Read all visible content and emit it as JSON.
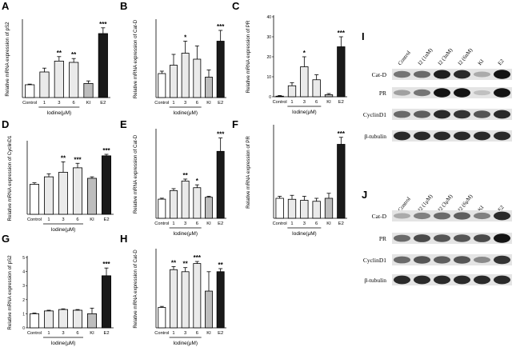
{
  "figure": {
    "colors": {
      "white_bar": "#ffffff",
      "light_bar": "#eaeaea",
      "gray_bar": "#bdbdbd",
      "dark_bar": "#1a1a1a",
      "axis": "#000000"
    }
  },
  "chart_data": [
    {
      "panel": "A",
      "type": "bar",
      "ylabel": "Relative mRNA expression of pS2",
      "xlabel": "Iodine(μM)",
      "categories": [
        "Control",
        "1",
        "3",
        "6",
        "KI",
        "E2"
      ],
      "values": [
        1.0,
        2.0,
        2.85,
        2.75,
        1.1,
        5.0
      ],
      "errors": [
        0.05,
        0.3,
        0.35,
        0.3,
        0.2,
        0.45
      ],
      "sig": [
        "",
        "",
        "**",
        "**",
        "",
        "***"
      ],
      "ylim": [
        0,
        6
      ],
      "ticks": [],
      "fills": [
        "white",
        "light",
        "light",
        "light",
        "gray",
        "dark"
      ]
    },
    {
      "panel": "B",
      "type": "bar",
      "ylabel": "Relative mRNA expression of Cat-D",
      "xlabel": "Iodine(μM)",
      "categories": [
        "Control",
        "1",
        "3",
        "6",
        "KI",
        "E2"
      ],
      "values": [
        1.0,
        1.35,
        1.85,
        1.6,
        0.85,
        2.35
      ],
      "errors": [
        0.1,
        0.45,
        0.5,
        0.55,
        0.3,
        0.45
      ],
      "sig": [
        "",
        "",
        "*",
        "",
        "",
        "***"
      ],
      "ylim": [
        0,
        3.2
      ],
      "ticks": [],
      "fills": [
        "white",
        "light",
        "light",
        "light",
        "gray",
        "dark"
      ]
    },
    {
      "panel": "C",
      "type": "bar",
      "ylabel": "Relative mRNA expression of PR",
      "xlabel": "Iodine(μM)",
      "categories": [
        "Control",
        "1",
        "3",
        "6",
        "KI",
        "E2"
      ],
      "values": [
        0.3,
        5.5,
        15.0,
        8.5,
        1.0,
        25.0
      ],
      "errors": [
        0.3,
        1.5,
        5.0,
        2.5,
        0.6,
        5.0
      ],
      "sig": [
        "",
        "",
        "*",
        "",
        "",
        "***"
      ],
      "ylim": [
        0,
        40
      ],
      "ticks": [
        "0",
        "10",
        "20",
        "30",
        "40"
      ],
      "fills": [
        "white",
        "light",
        "light",
        "light",
        "gray",
        "dark"
      ]
    },
    {
      "panel": "D",
      "type": "bar",
      "ylabel": "Relative mRNA expression of CyclinD1",
      "xlabel": "Iodine(μM)",
      "categories": [
        "Control",
        "1",
        "3",
        "6",
        "KI",
        "E2"
      ],
      "values": [
        1.0,
        1.25,
        1.4,
        1.55,
        1.2,
        1.95
      ],
      "errors": [
        0.05,
        0.1,
        0.35,
        0.15,
        0.05,
        0.05
      ],
      "sig": [
        "",
        "",
        "**",
        "***",
        "",
        "***"
      ],
      "ylim": [
        0,
        2.4
      ],
      "ticks": [],
      "fills": [
        "white",
        "light",
        "light",
        "light",
        "gray",
        "dark"
      ]
    },
    {
      "panel": "E",
      "type": "bar",
      "ylabel": "Relative mRNA expression of Cat-D",
      "xlabel": "Iodine(μM)",
      "categories": [
        "Control",
        "1",
        "3",
        "6",
        "KI",
        "E2"
      ],
      "values": [
        1.0,
        1.45,
        1.95,
        1.6,
        1.1,
        3.5
      ],
      "errors": [
        0.05,
        0.1,
        0.1,
        0.15,
        0.05,
        0.7
      ],
      "sig": [
        "",
        "",
        "**",
        "*",
        "",
        "***"
      ],
      "ylim": [
        0,
        4.6
      ],
      "ticks": [],
      "fills": [
        "white",
        "light",
        "light",
        "light",
        "gray",
        "dark"
      ]
    },
    {
      "panel": "F",
      "type": "bar",
      "ylabel": "Relative mRNA expression of PR",
      "xlabel": "Iodine(μM)",
      "categories": [
        "Control",
        "1",
        "3",
        "6",
        "KI",
        "E2"
      ],
      "values": [
        1.0,
        0.95,
        0.9,
        0.85,
        1.0,
        3.7
      ],
      "errors": [
        0.1,
        0.2,
        0.2,
        0.15,
        0.25,
        0.35
      ],
      "sig": [
        "",
        "",
        "",
        "",
        "",
        "***"
      ],
      "ylim": [
        0,
        4.6
      ],
      "ticks": [],
      "fills": [
        "white",
        "light",
        "light",
        "light",
        "gray",
        "dark"
      ]
    },
    {
      "panel": "G",
      "type": "bar",
      "ylabel": "Relative mRNA expression of pS2",
      "xlabel": "Iodine(μM)",
      "categories": [
        "Control",
        "1",
        "3",
        "6",
        "KI",
        "E2"
      ],
      "values": [
        1.0,
        1.2,
        1.3,
        1.25,
        1.0,
        3.7
      ],
      "errors": [
        0.05,
        0.05,
        0.05,
        0.05,
        0.4,
        0.55
      ],
      "sig": [
        "",
        "",
        "",
        "",
        "",
        "***"
      ],
      "ylim": [
        0,
        5
      ],
      "ticks": [
        "0",
        "1",
        "2",
        "3",
        "4",
        "5"
      ],
      "fills": [
        "white",
        "light",
        "light",
        "light",
        "gray",
        "dark"
      ]
    },
    {
      "panel": "H",
      "type": "bar",
      "ylabel": "Relative mRNA expression of Cat-D",
      "xlabel": "Iodine(μM)",
      "categories": [
        "Control",
        "1",
        "3",
        "6",
        "KI",
        "E2"
      ],
      "values": [
        1.0,
        2.85,
        2.75,
        3.15,
        1.8,
        2.75
      ],
      "errors": [
        0.05,
        0.15,
        0.2,
        0.1,
        0.95,
        0.15
      ],
      "sig": [
        "",
        "**",
        "**",
        "***",
        "",
        "**"
      ],
      "ylim": [
        0,
        3.8
      ],
      "ticks": [],
      "fills": [
        "white",
        "light",
        "light",
        "light",
        "gray",
        "dark"
      ]
    }
  ],
  "blots": [
    {
      "panel": "I",
      "lanes": [
        "Control",
        "I2 (1nM)",
        "I2 (3nM)",
        "I2 (6nM)",
        "KI",
        "E2"
      ],
      "rows": [
        {
          "label": "Cat-D",
          "intensity": [
            0.55,
            0.6,
            0.95,
            0.9,
            0.3,
            1.0
          ]
        },
        {
          "label": "PR",
          "intensity": [
            0.35,
            0.55,
            1.0,
            1.0,
            0.2,
            1.0
          ]
        },
        {
          "label": "CyclinD1",
          "intensity": [
            0.6,
            0.65,
            0.9,
            0.85,
            0.7,
            0.9
          ]
        },
        {
          "label": "β-tubulin",
          "intensity": [
            0.9,
            0.9,
            0.9,
            0.9,
            0.9,
            0.9
          ]
        }
      ]
    },
    {
      "panel": "J",
      "lanes": [
        "Control",
        "I2 (1μM)",
        "I2 (3μM)",
        "I2 (6μM)",
        "KI",
        "E2"
      ],
      "rows": [
        {
          "label": "Cat-D",
          "intensity": [
            0.3,
            0.5,
            0.6,
            0.65,
            0.5,
            0.9
          ]
        },
        {
          "label": "PR",
          "intensity": [
            0.6,
            0.75,
            0.7,
            0.7,
            0.75,
            1.0
          ]
        },
        {
          "label": "CyclinD1",
          "intensity": [
            0.6,
            0.7,
            0.65,
            0.7,
            0.45,
            0.85
          ]
        },
        {
          "label": "β-tubulin",
          "intensity": [
            0.9,
            0.9,
            0.9,
            0.9,
            0.9,
            0.9
          ]
        }
      ]
    }
  ]
}
